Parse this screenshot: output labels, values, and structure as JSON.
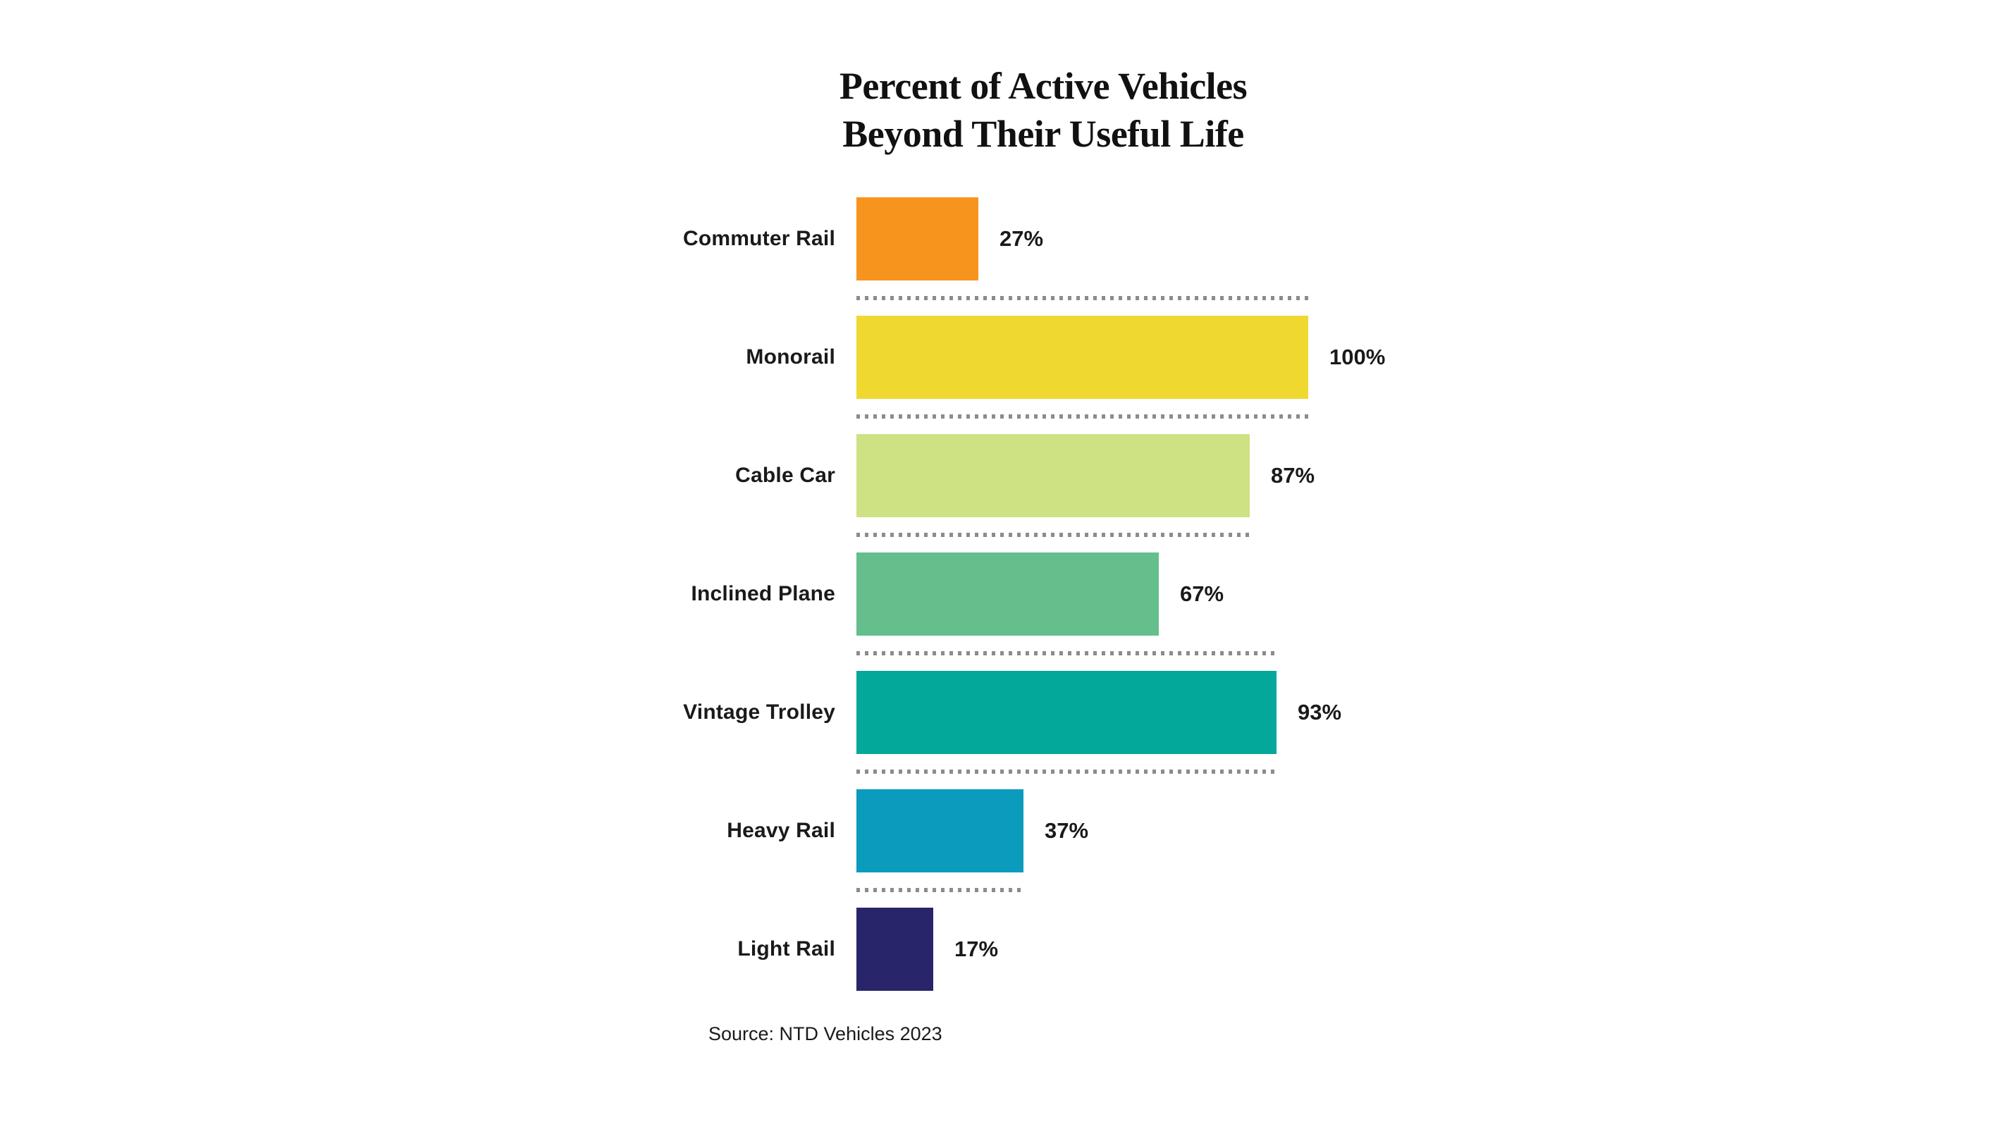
{
  "title_line1": "Percent of Active Vehicles",
  "title_line2": "Beyond Their Useful Life",
  "source": "Source: NTD Vehicles 2023",
  "colors": {
    "background": "#ffffff",
    "text": "#1a1a1a",
    "separator_dots": "#8c8c8c"
  },
  "chart_data": {
    "type": "bar",
    "orientation": "horizontal",
    "title": "Percent of Active Vehicles Beyond Their Useful Life",
    "xlabel": "",
    "ylabel": "",
    "xlim": [
      0,
      100
    ],
    "unit": "%",
    "grid": false,
    "legend": false,
    "source": "Source: NTD Vehicles 2023",
    "categories": [
      "Commuter Rail",
      "Monorail",
      "Cable Car",
      "Inclined Plane",
      "Vintage Trolley",
      "Heavy Rail",
      "Light Rail"
    ],
    "values": [
      27,
      100,
      87,
      67,
      93,
      37,
      17
    ],
    "rows": [
      {
        "label": "Commuter Rail",
        "value": 27,
        "value_label": "27%",
        "color": "#F7941E"
      },
      {
        "label": "Monorail",
        "value": 100,
        "value_label": "100%",
        "color": "#EFD930"
      },
      {
        "label": "Cable Car",
        "value": 87,
        "value_label": "87%",
        "color": "#CEE183"
      },
      {
        "label": "Inclined Plane",
        "value": 67,
        "value_label": "67%",
        "color": "#64BF8C"
      },
      {
        "label": "Vintage Trolley",
        "value": 93,
        "value_label": "93%",
        "color": "#04A89B"
      },
      {
        "label": "Heavy Rail",
        "value": 37,
        "value_label": "37%",
        "color": "#0B9BBD"
      },
      {
        "label": "Light Rail",
        "value": 17,
        "value_label": "17%",
        "color": "#29256A"
      }
    ]
  }
}
